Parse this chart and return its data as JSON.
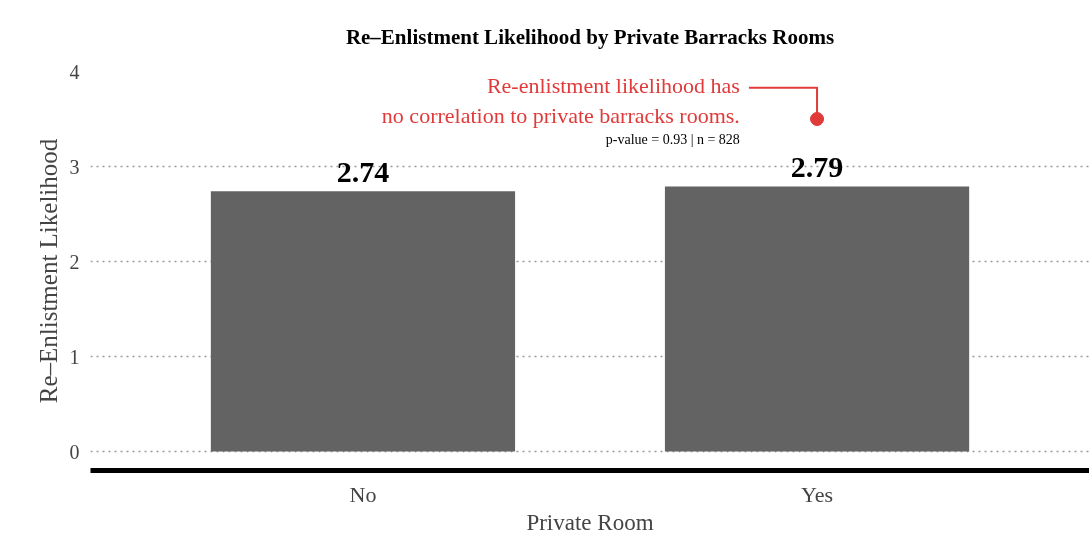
{
  "chart_data": {
    "type": "bar",
    "title": "Re–Enlistment Likelihood by Private Barracks Rooms",
    "xlabel": "Private Room",
    "ylabel": "Re–Enlistment Likelihood",
    "categories": [
      "No",
      "Yes"
    ],
    "values": [
      2.74,
      2.79
    ],
    "color": "#636363",
    "data_labels": true,
    "ylim": [
      -0.2,
      4
    ],
    "yticks": [
      0,
      1,
      2,
      3,
      4
    ],
    "grid": "y",
    "annotations": [
      {
        "text": "Re-enlistment likelihood has\nno correlation to private barracks rooms.",
        "x": "Yes",
        "y": 3.5
      },
      "p-value = 0.93 | n = 828"
    ]
  }
}
